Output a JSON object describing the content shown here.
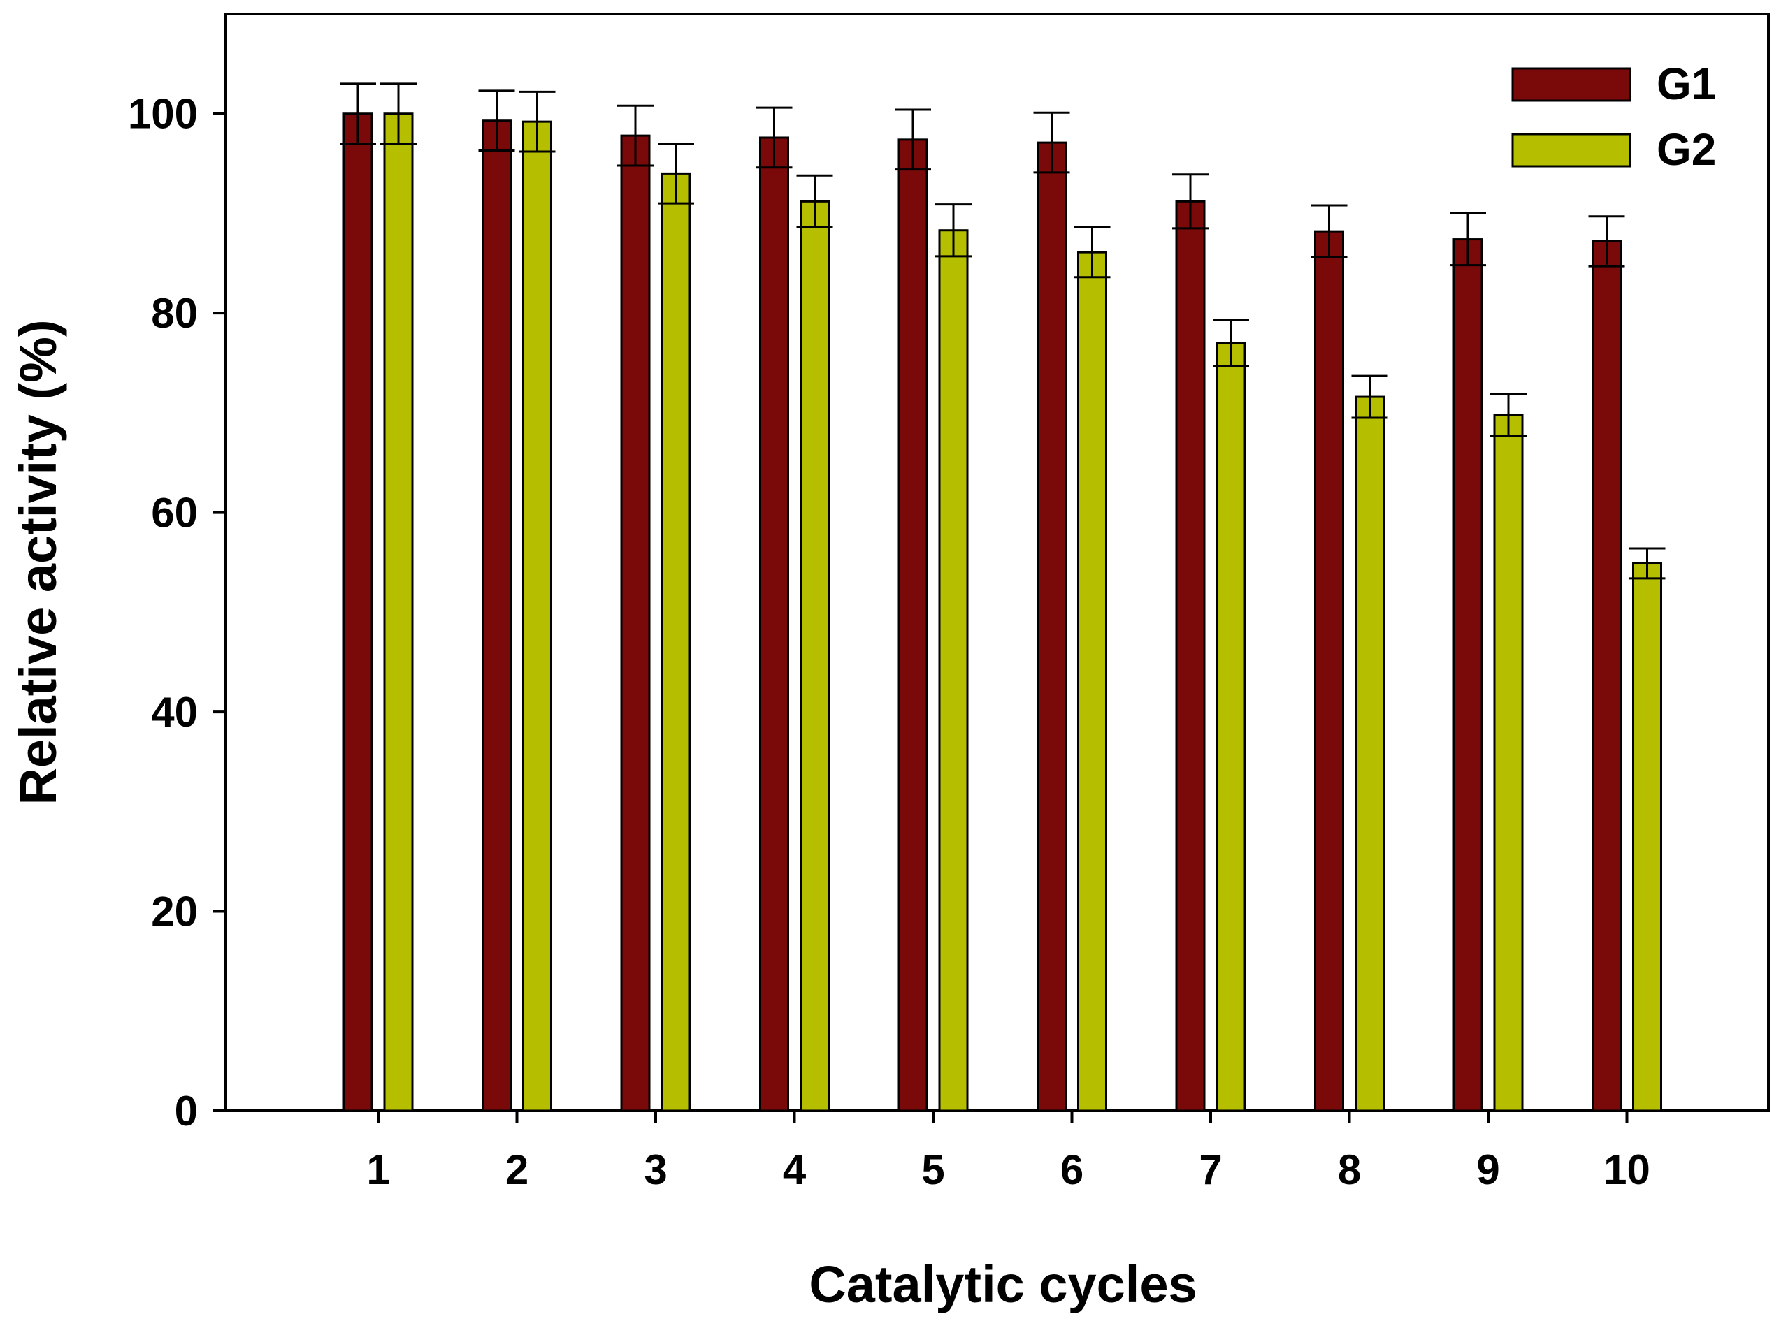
{
  "chart_data": {
    "type": "bar",
    "title": "",
    "xlabel": "Catalytic cycles",
    "ylabel": "Relative activity (%)",
    "ylim": [
      0,
      110
    ],
    "yticks": [
      0,
      20,
      40,
      60,
      80,
      100
    ],
    "categories": [
      "1",
      "2",
      "3",
      "4",
      "5",
      "6",
      "7",
      "8",
      "9",
      "10"
    ],
    "series": [
      {
        "name": "G1",
        "color": "#7a0a0a",
        "values": [
          100,
          99.3,
          97.8,
          97.6,
          97.4,
          97.1,
          91.2,
          88.2,
          87.4,
          87.2
        ],
        "errors": [
          3.0,
          3.0,
          3.0,
          3.0,
          3.0,
          3.0,
          2.7,
          2.6,
          2.6,
          2.5
        ]
      },
      {
        "name": "G2",
        "color": "#b5bf00",
        "values": [
          100,
          99.2,
          94.0,
          91.2,
          88.3,
          86.1,
          77.0,
          71.6,
          69.8,
          54.9
        ],
        "errors": [
          3.0,
          3.0,
          3.0,
          2.6,
          2.6,
          2.5,
          2.3,
          2.1,
          2.1,
          1.5
        ]
      }
    ],
    "grid": false,
    "legend": "top-right"
  }
}
